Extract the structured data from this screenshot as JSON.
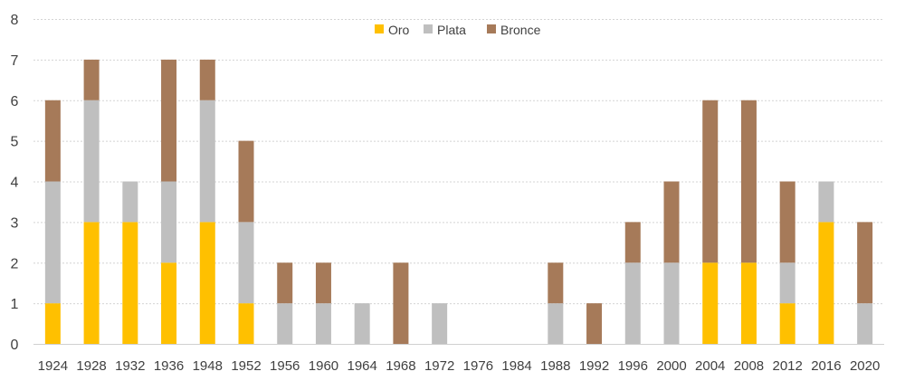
{
  "chart_data": {
    "type": "bar",
    "stacked": true,
    "title": "",
    "xlabel": "",
    "ylabel": "",
    "ylim": [
      0,
      8
    ],
    "yticks": [
      0,
      1,
      2,
      3,
      4,
      5,
      6,
      7,
      8
    ],
    "grid": true,
    "legend_position": "top-center",
    "categories": [
      "1924",
      "1928",
      "1932",
      "1936",
      "1948",
      "1952",
      "1956",
      "1960",
      "1964",
      "1968",
      "1972",
      "1976",
      "1984",
      "1988",
      "1992",
      "1996",
      "2000",
      "2004",
      "2008",
      "2012",
      "2016",
      "2020"
    ],
    "series": [
      {
        "name": "Oro",
        "color": "#FFC000",
        "values": [
          1,
          3,
          3,
          2,
          3,
          1,
          0,
          0,
          0,
          0,
          0,
          0,
          0,
          0,
          0,
          0,
          0,
          2,
          2,
          1,
          3,
          0
        ]
      },
      {
        "name": "Plata",
        "color": "#BFBFBF",
        "values": [
          3,
          3,
          1,
          2,
          3,
          2,
          1,
          1,
          1,
          0,
          1,
          0,
          0,
          1,
          0,
          2,
          2,
          0,
          0,
          1,
          1,
          1
        ]
      },
      {
        "name": "Bronce",
        "color": "#A67A59",
        "values": [
          2,
          1,
          0,
          3,
          1,
          2,
          1,
          1,
          0,
          2,
          0,
          0,
          0,
          1,
          1,
          1,
          2,
          4,
          4,
          2,
          0,
          2
        ]
      }
    ]
  }
}
